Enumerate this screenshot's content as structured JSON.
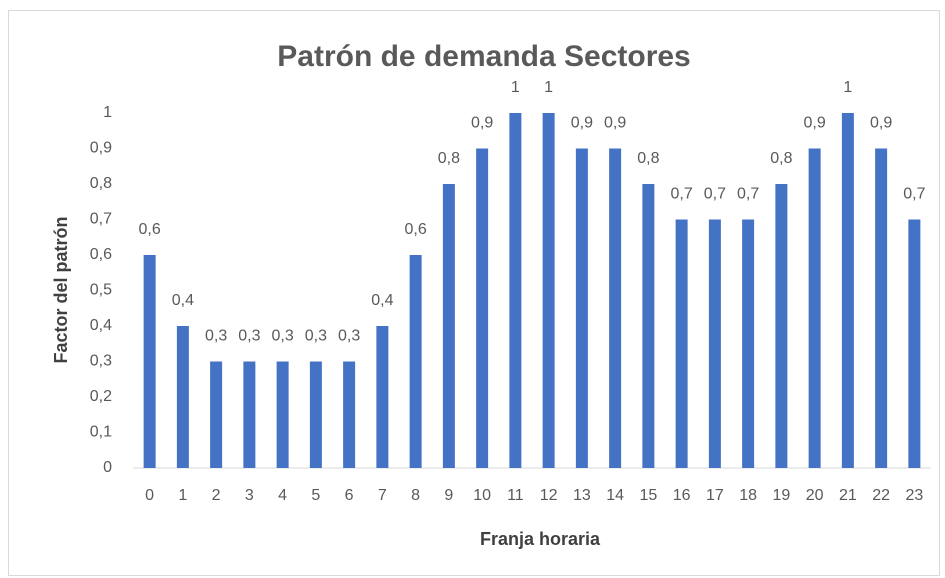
{
  "chart_data": {
    "type": "bar",
    "title": "Patrón de demanda Sectores",
    "x_label": "Franja horaria",
    "y_label": "Factor del patrón",
    "categories": [
      "0",
      "1",
      "2",
      "3",
      "4",
      "5",
      "6",
      "7",
      "8",
      "9",
      "10",
      "11",
      "12",
      "13",
      "14",
      "15",
      "16",
      "17",
      "18",
      "19",
      "20",
      "21",
      "22",
      "23"
    ],
    "values": [
      0.6,
      0.4,
      0.3,
      0.3,
      0.3,
      0.3,
      0.3,
      0.4,
      0.6,
      0.8,
      0.9,
      1,
      1,
      0.9,
      0.9,
      0.8,
      0.7,
      0.7,
      0.7,
      0.8,
      0.9,
      1,
      0.9,
      0.7
    ],
    "value_labels": [
      "0,6",
      "0,4",
      "0,3",
      "0,3",
      "0,3",
      "0,3",
      "0,3",
      "0,4",
      "0,6",
      "0,8",
      "0,9",
      "1",
      "1",
      "0,9",
      "0,9",
      "0,8",
      "0,7",
      "0,7",
      "0,7",
      "0,8",
      "0,9",
      "1",
      "0,9",
      "0,7"
    ],
    "color": "#4472c4",
    "ylim": [
      0,
      1
    ],
    "yticks": [
      0,
      {
        "value": 0.1,
        "label": "0,1"
      },
      {
        "value": 0.2,
        "label": "0,2"
      },
      {
        "value": 0.3,
        "label": "0,3"
      },
      {
        "value": 0.4,
        "label": "0,4"
      },
      {
        "value": 0.5,
        "label": "0,5"
      },
      {
        "value": 0.6,
        "label": "0,6"
      },
      {
        "value": 0.7,
        "label": "0,7"
      },
      {
        "value": 0.8,
        "label": "0,8"
      },
      {
        "value": 0.9,
        "label": "0,9"
      },
      1
    ],
    "grid": false
  }
}
